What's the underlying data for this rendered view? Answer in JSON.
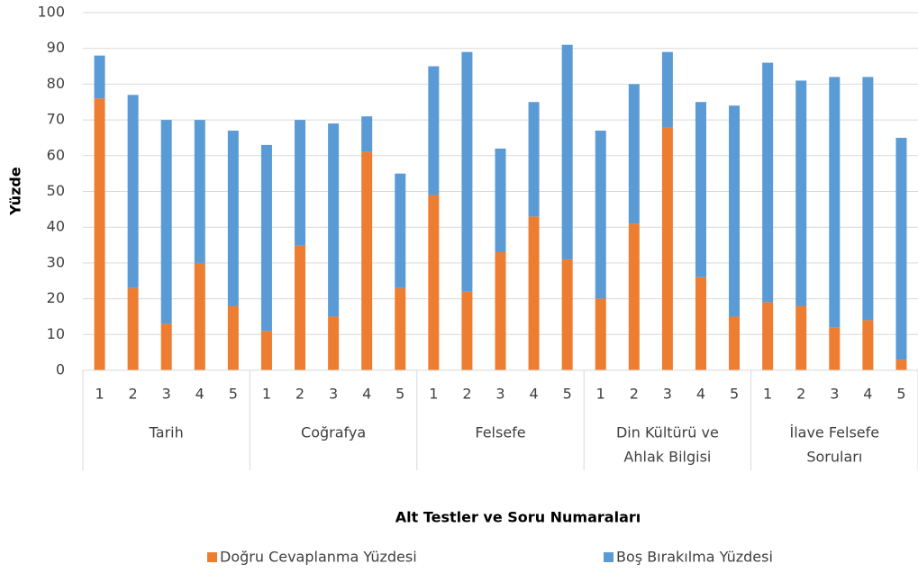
{
  "chart_data": {
    "type": "stacked_bar",
    "y_label": "Yüzde",
    "x_label": "Alt Testler ve Soru Numaraları",
    "groups": [
      {
        "name": [
          "Tarih"
        ],
        "categories": [
          "1",
          "2",
          "3",
          "4",
          "5"
        ]
      },
      {
        "name": [
          "Coğrafya"
        ],
        "categories": [
          "1",
          "2",
          "3",
          "4",
          "5"
        ]
      },
      {
        "name": [
          "Felsefe"
        ],
        "categories": [
          "1",
          "2",
          "3",
          "4",
          "5"
        ]
      },
      {
        "name": [
          "Din Kültürü ve",
          "Ahlak Bilgisi"
        ],
        "categories": [
          "1",
          "2",
          "3",
          "4",
          "5"
        ]
      },
      {
        "name": [
          "İlave Felsefe",
          "Soruları"
        ],
        "categories": [
          "1",
          "2",
          "3",
          "4",
          "5"
        ]
      }
    ],
    "series": [
      {
        "name": "Doğru Cevaplanma Yüzdesi",
        "color": "#ed7d31",
        "values": [
          76,
          23,
          13,
          30,
          18,
          11,
          35,
          15,
          61,
          23,
          49,
          22,
          33,
          43,
          31,
          20,
          41,
          68,
          26,
          15,
          19,
          18,
          12,
          14,
          3
        ]
      },
      {
        "name": "Boş Bırakılma Yüzdesi",
        "color": "#5b9bd5",
        "values": [
          12,
          54,
          57,
          40,
          49,
          52,
          35,
          54,
          10,
          32,
          36,
          67,
          29,
          32,
          60,
          47,
          39,
          21,
          49,
          59,
          67,
          63,
          70,
          68,
          62
        ]
      }
    ],
    "ylim": [
      0,
      100
    ],
    "yticks": [
      0,
      10,
      20,
      30,
      40,
      50,
      60,
      70,
      80,
      90,
      100
    ],
    "grid": true
  }
}
